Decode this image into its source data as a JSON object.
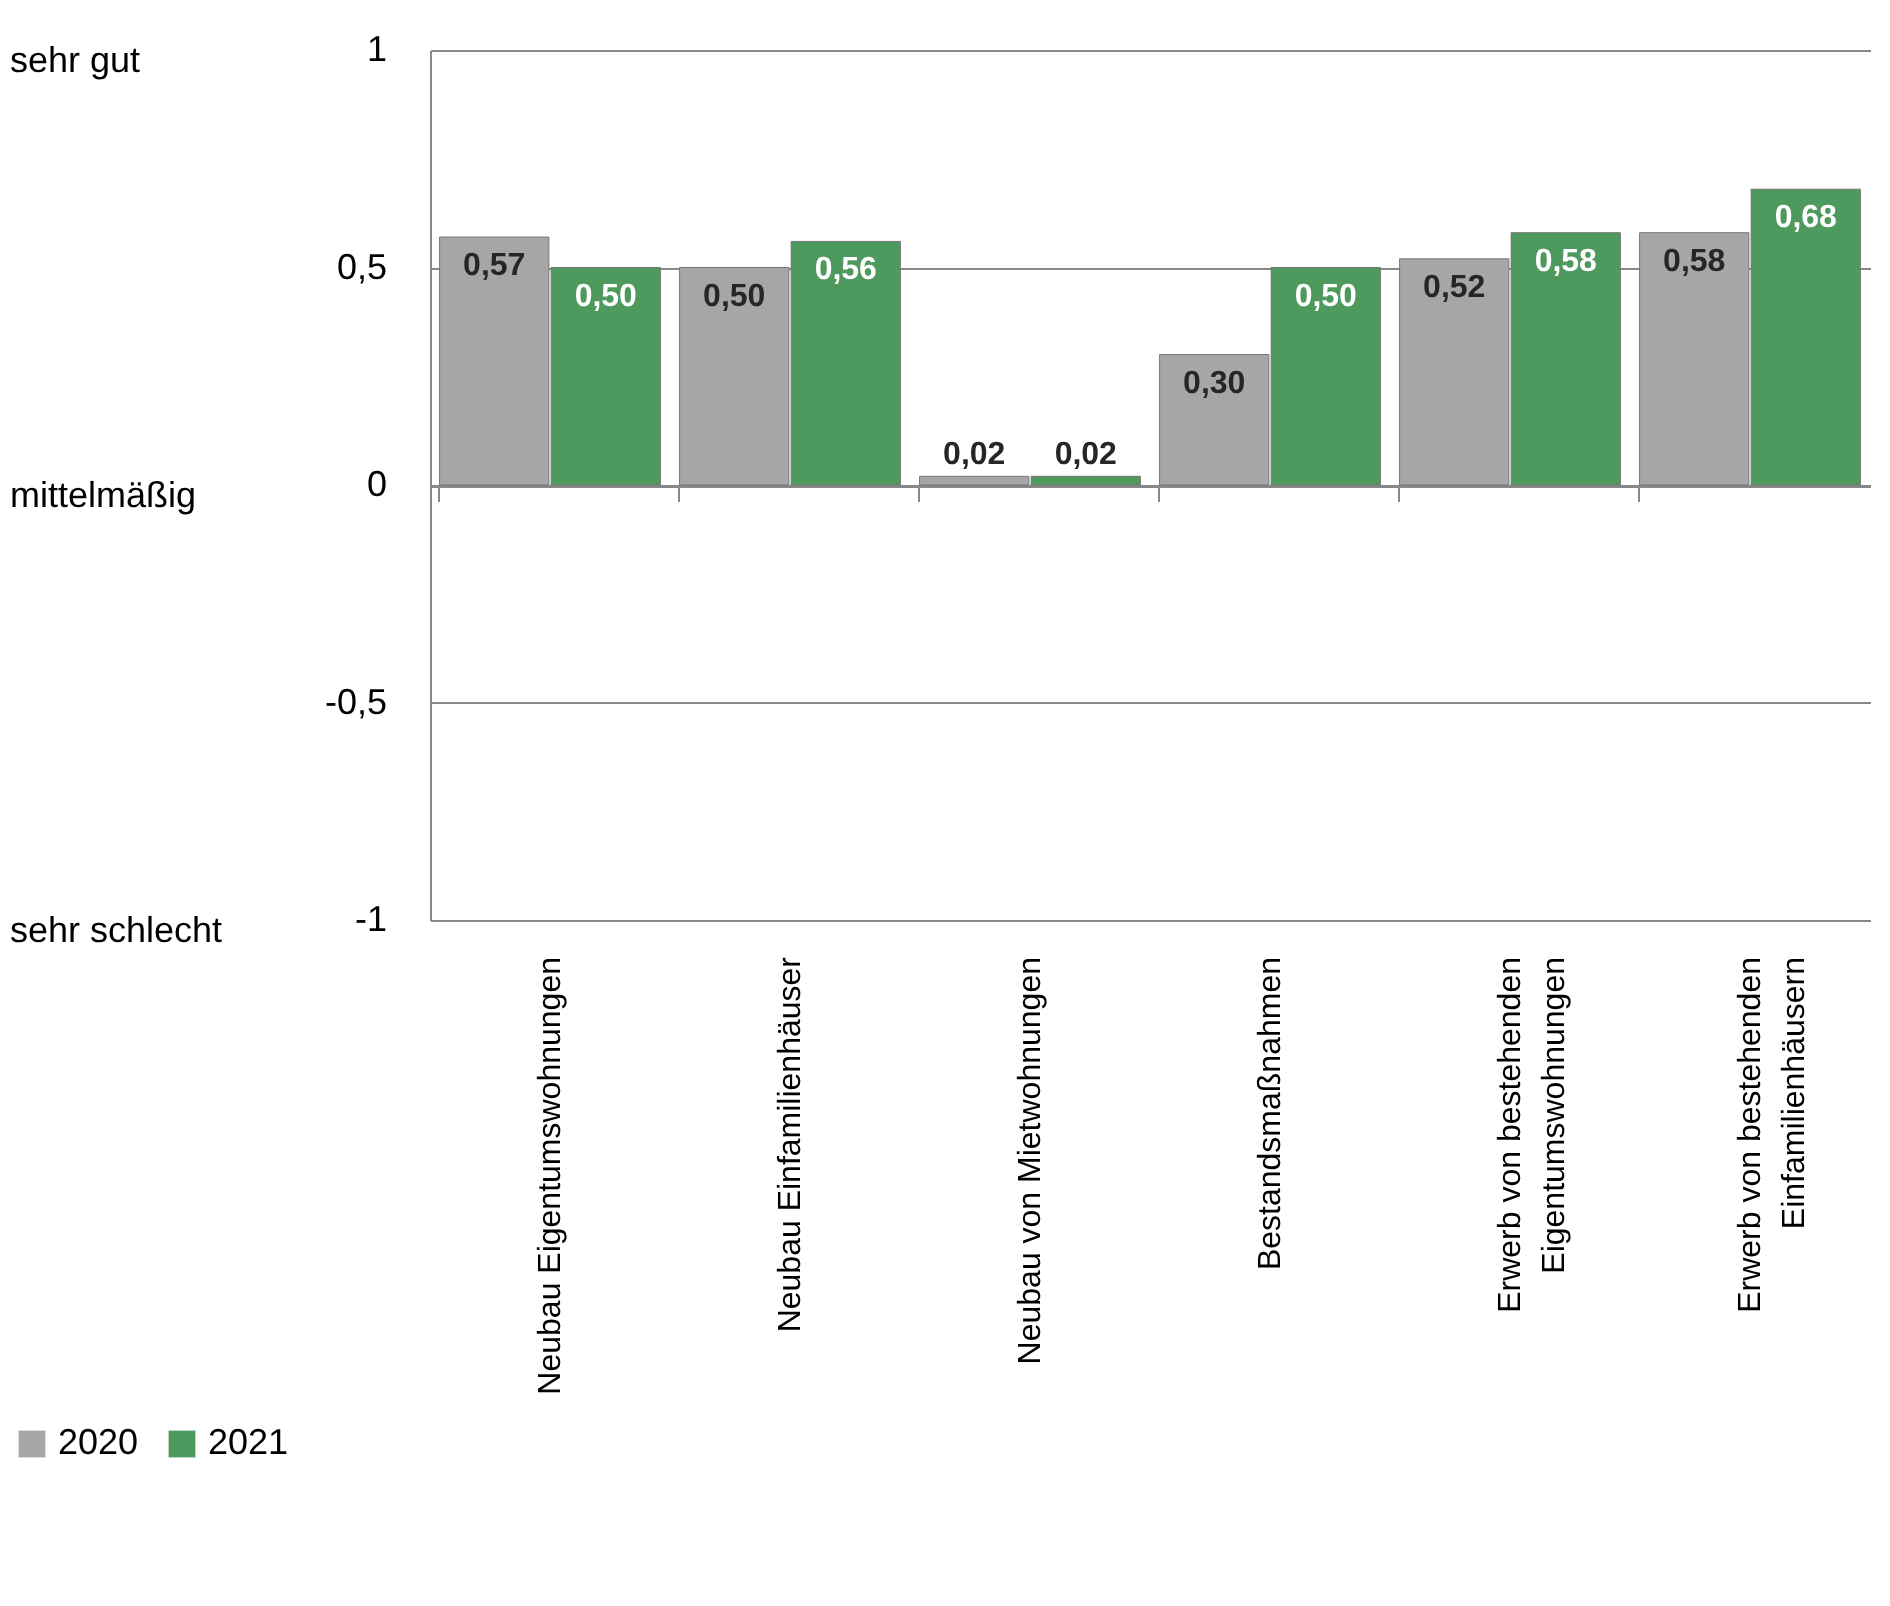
{
  "chart_data": {
    "type": "bar",
    "categories": [
      "Neubau Eigentumswohnungen",
      "Neubau Einfamilienhäuser",
      "Neubau von Mietwohnungen",
      "Bestandsmaßnahmen",
      "Erwerb von bestehenden Eigentumswohnungen",
      "Erwerb von bestehenden Einfamilienhäusern"
    ],
    "series": [
      {
        "name": "2020",
        "color": "#a6a6a6",
        "values": [
          0.57,
          0.5,
          0.02,
          0.3,
          0.52,
          0.58
        ],
        "value_labels": [
          "0,57",
          "0,50",
          "0,02",
          "0,30",
          "0,52",
          "0,58"
        ]
      },
      {
        "name": "2021",
        "color": "#4e9a5e",
        "values": [
          0.5,
          0.56,
          0.02,
          0.5,
          0.58,
          0.68
        ],
        "value_labels": [
          "0,50",
          "0,56",
          "0,02",
          "0,50",
          "0,58",
          "0,68"
        ]
      }
    ],
    "ylim": [
      -1,
      1
    ],
    "yticks": [
      {
        "value": -1,
        "label": "-1"
      },
      {
        "value": -0.5,
        "label": "-0,5"
      },
      {
        "value": 0,
        "label": "0"
      },
      {
        "value": 0.5,
        "label": "0,5"
      },
      {
        "value": 1,
        "label": "1"
      }
    ],
    "grid": "y",
    "legend": "bottom left",
    "annotations": [
      "sehr gut",
      "mittelmäßig",
      "sehr schlecht"
    ]
  }
}
